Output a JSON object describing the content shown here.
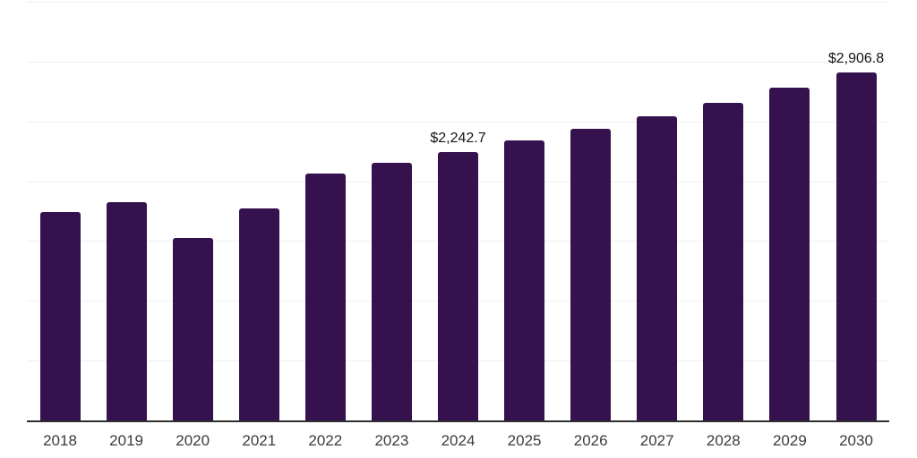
{
  "chart_data": {
    "type": "bar",
    "title": "",
    "xlabel": "",
    "ylabel": "",
    "categories": [
      "2018",
      "2019",
      "2020",
      "2021",
      "2022",
      "2023",
      "2024",
      "2025",
      "2026",
      "2027",
      "2028",
      "2029",
      "2030"
    ],
    "values": [
      1742.3,
      1822.0,
      1526.4,
      1774.4,
      2062.5,
      2151.9,
      2242.7,
      2338.0,
      2437.1,
      2541.3,
      2656.0,
      2779.6,
      2906.8
    ],
    "value_labels": [
      {
        "index": 6,
        "text": "$2,242.7"
      },
      {
        "index": 12,
        "text": "$2,906.8"
      }
    ],
    "ylim": [
      0,
      3500
    ],
    "gridline_step": 500,
    "grid": "horizontal, light gray; y-axis labels hidden",
    "legend": "none",
    "bar_color": "#35114E",
    "axis_line_color": "#2e2e2e",
    "gridline_color": "#f0f0f3",
    "label_color": "#141414",
    "tick_label_color": "#3b3b3b"
  }
}
